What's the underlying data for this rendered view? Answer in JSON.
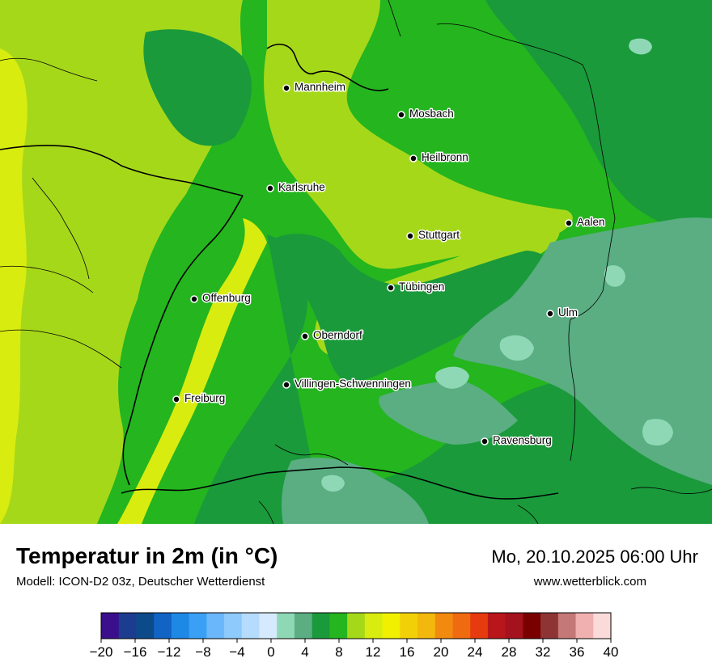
{
  "header": {
    "title": "Temperatur in 2m (in °C)",
    "subtitle": "Modell: ICON-D2 03z, Deutscher Wetterdienst",
    "datetime": "Mo, 20.10.2025 06:00 Uhr",
    "website": "www.wetterblick.com"
  },
  "cities": [
    {
      "name": "Mannheim"
    },
    {
      "name": "Mosbach"
    },
    {
      "name": "Heilbronn"
    },
    {
      "name": "Karlsruhe"
    },
    {
      "name": "Aalen"
    },
    {
      "name": "Stuttgart"
    },
    {
      "name": "Tübingen"
    },
    {
      "name": "Offenburg"
    },
    {
      "name": "Ulm"
    },
    {
      "name": "Oberndorf"
    },
    {
      "name": "Villingen-Schwenningen"
    },
    {
      "name": "Freiburg"
    },
    {
      "name": "Ravensburg"
    }
  ],
  "colorbar": {
    "min": -20,
    "max": 40,
    "step": 2,
    "tick_labels": [
      "−20",
      "−16",
      "−12",
      "−8",
      "−4",
      "0",
      "4",
      "8",
      "12",
      "16",
      "20",
      "24",
      "28",
      "32",
      "36",
      "40"
    ],
    "colors": [
      "#3b0f8c",
      "#1c3d8f",
      "#0d4a8a",
      "#1164c4",
      "#1e88e5",
      "#3aa0f5",
      "#6ab8fb",
      "#8ecafc",
      "#b5dcfd",
      "#d6eafd",
      "#8fd8b5",
      "#5aae82",
      "#1a9a3b",
      "#24b51f",
      "#a6d81a",
      "#d8ec10",
      "#f0f000",
      "#f2d008",
      "#f2b80d",
      "#f28a10",
      "#f06a10",
      "#e63a0f",
      "#b8161a",
      "#a4121d",
      "#7a0000",
      "#8e3434",
      "#c47878",
      "#f0b0b0",
      "#fbdada"
    ]
  },
  "temperature_colors": {
    "c4_6": "#5aae82",
    "c6_8": "#1a9a3b",
    "c8_10": "#24b51f",
    "c10_12": "#a6d81a",
    "c12_14": "#d8ec10",
    "c2_4": "#8fd8b5"
  }
}
